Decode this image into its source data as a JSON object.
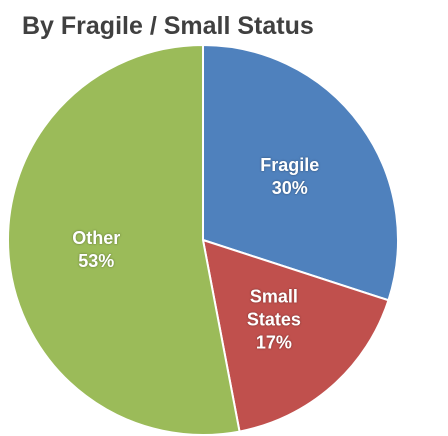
{
  "chart_data": {
    "type": "pie",
    "title": "By Fragile / Small Status",
    "categories": [
      "Fragile",
      "Small States",
      "Other"
    ],
    "values": [
      30,
      17,
      53
    ],
    "value_labels": [
      "30%",
      "17%",
      "53%"
    ],
    "colors": [
      "#4f81bd",
      "#c0504d",
      "#9bbb59"
    ]
  }
}
